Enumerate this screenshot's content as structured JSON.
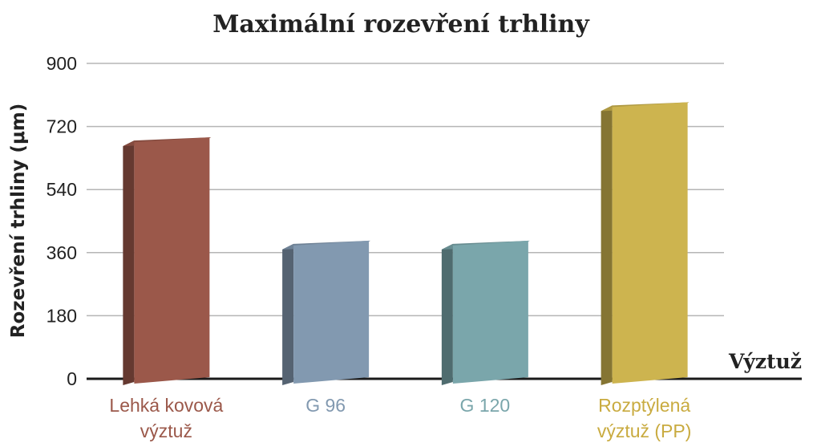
{
  "chart_data": {
    "type": "bar",
    "title": "Maximální rozevření trhliny",
    "ylabel": "Rozevření trhliny (μm)",
    "xlabel": "Výztuž",
    "ylim": [
      0,
      900
    ],
    "yticks": [
      0,
      180,
      360,
      540,
      720,
      900
    ],
    "grid": true,
    "categories": [
      [
        "Lehká kovová",
        "výztuž"
      ],
      [
        "G 96"
      ],
      [
        "G 120"
      ],
      [
        "Rozptýlená",
        "výztuž (PP)"
      ]
    ],
    "values": [
      680,
      385,
      385,
      780
    ],
    "colors": [
      "#9b584a",
      "#8299b0",
      "#7aa6ab",
      "#cdb44f"
    ],
    "label_colors": [
      "#9b584a",
      "#8299b0",
      "#7aa6ab",
      "#c9ab40"
    ]
  }
}
